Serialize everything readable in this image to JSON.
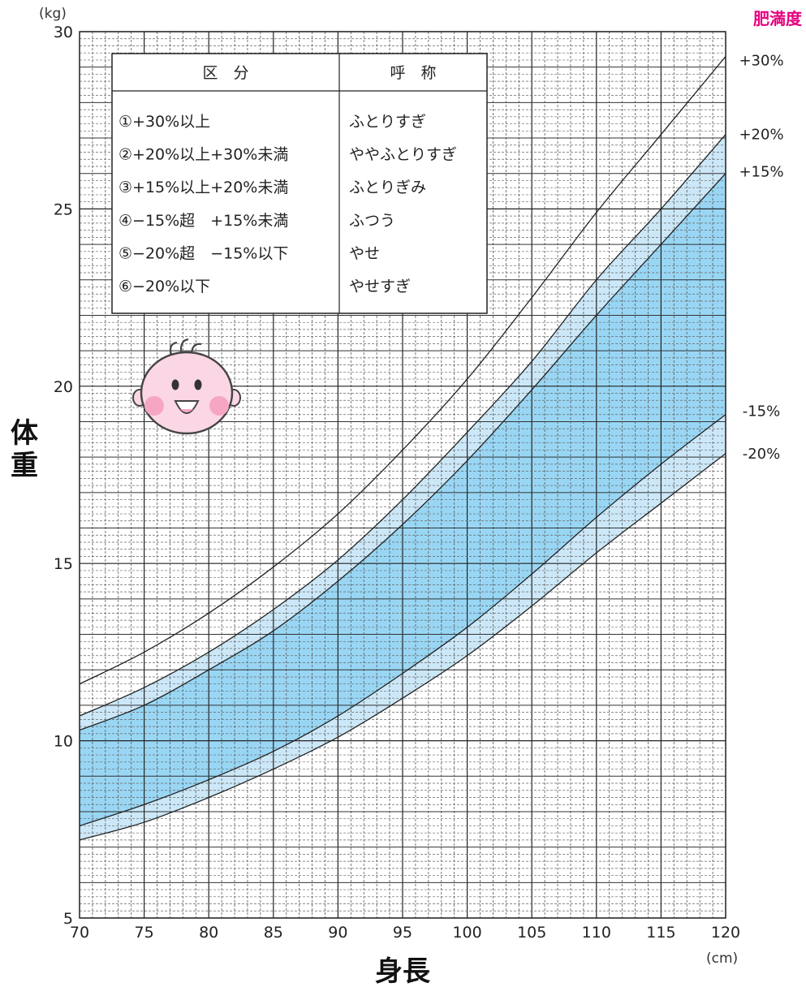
{
  "chart_data": {
    "type": "line",
    "title": "",
    "obesity_label": "肥満度",
    "xlabel": "身長",
    "ylabel": "体重",
    "x_unit": "(cm)",
    "y_unit": "(kg)",
    "xlim": [
      70,
      120
    ],
    "ylim": [
      5,
      30
    ],
    "x_ticks": [
      70,
      75,
      80,
      85,
      90,
      95,
      100,
      105,
      110,
      115,
      120
    ],
    "y_ticks": [
      5,
      10,
      15,
      20,
      25,
      30
    ],
    "grid": true,
    "x": [
      70,
      75,
      80,
      85,
      90,
      95,
      100,
      105,
      110,
      115,
      120
    ],
    "series": [
      {
        "name": "+30%",
        "values": [
          11.6,
          12.5,
          13.6,
          14.9,
          16.4,
          18.2,
          20.2,
          22.5,
          24.9,
          27.1,
          29.3
        ]
      },
      {
        "name": "+20%",
        "values": [
          10.7,
          11.5,
          12.5,
          13.7,
          15.1,
          16.8,
          18.7,
          20.7,
          23.0,
          25.0,
          27.1
        ]
      },
      {
        "name": "+15%",
        "values": [
          10.3,
          11.0,
          12.0,
          13.1,
          14.5,
          16.1,
          17.9,
          19.9,
          22.0,
          24.0,
          26.0
        ]
      },
      {
        "name": "-15%",
        "values": [
          7.6,
          8.2,
          8.9,
          9.7,
          10.7,
          11.9,
          13.2,
          14.7,
          16.3,
          17.8,
          19.2
        ]
      },
      {
        "name": "-20%",
        "values": [
          7.2,
          7.7,
          8.4,
          9.2,
          10.1,
          11.2,
          12.4,
          13.8,
          15.3,
          16.7,
          18.1
        ]
      }
    ],
    "band_colors": {
      "outer": "#cce8f8",
      "inner": "#99d6f4"
    },
    "line_color": "#222222",
    "obesity_color": "#e6007e",
    "table": {
      "header": [
        "区　分",
        "呼　称"
      ],
      "rows": [
        [
          "①+30%以上",
          "ふとりすぎ"
        ],
        [
          "②+20%以上+30%未満",
          "ややふとりすぎ"
        ],
        [
          "③+15%以上+20%未満",
          "ふとりぎみ"
        ],
        [
          "④−15%超　+15%未満",
          "ふつう"
        ],
        [
          "⑤−20%超　−15%以下",
          "やせ"
        ],
        [
          "⑥−20%以下",
          "やせすぎ"
        ]
      ]
    }
  },
  "mascot": {
    "icon": "smiling-baby-face-icon"
  }
}
